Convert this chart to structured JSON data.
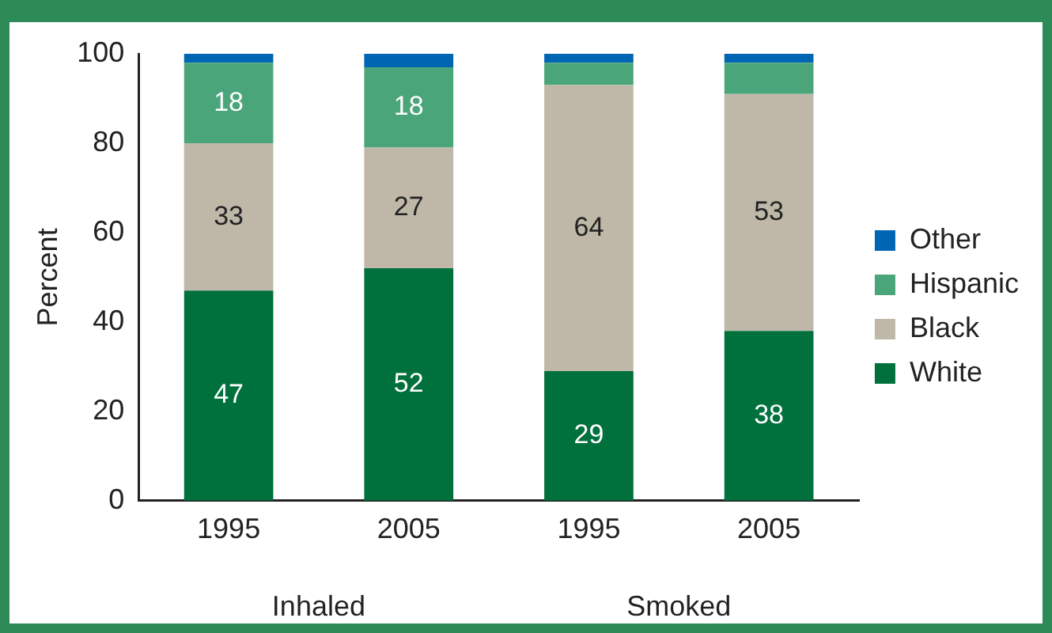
{
  "chart_data": {
    "type": "bar",
    "stacked": true,
    "ylabel": "Percent",
    "categories": [
      "1995",
      "2005",
      "1995",
      "2005"
    ],
    "ylim": [
      0,
      100
    ],
    "yticks": [
      0,
      20,
      40,
      60,
      80,
      100
    ],
    "grid": false,
    "legend": "right",
    "annotations": [
      "Inhaled",
      "Smoked"
    ],
    "series": [
      {
        "name": "White",
        "color": "#00703c",
        "values": [
          47,
          52,
          29,
          38
        ],
        "value_labels": [
          "47",
          "52",
          "29",
          "38"
        ]
      },
      {
        "name": "Black",
        "color": "#bfb8a8",
        "values": [
          33,
          27,
          64,
          53
        ],
        "value_labels": [
          "33",
          "27",
          "64",
          "53"
        ]
      },
      {
        "name": "Hispanic",
        "color": "#4ba57a",
        "values": [
          18,
          18,
          5,
          7
        ],
        "value_labels": [
          "18",
          "18",
          null,
          null
        ]
      },
      {
        "name": "Other",
        "color": "#0066b3",
        "values": [
          2,
          3,
          2,
          2
        ]
      }
    ]
  }
}
